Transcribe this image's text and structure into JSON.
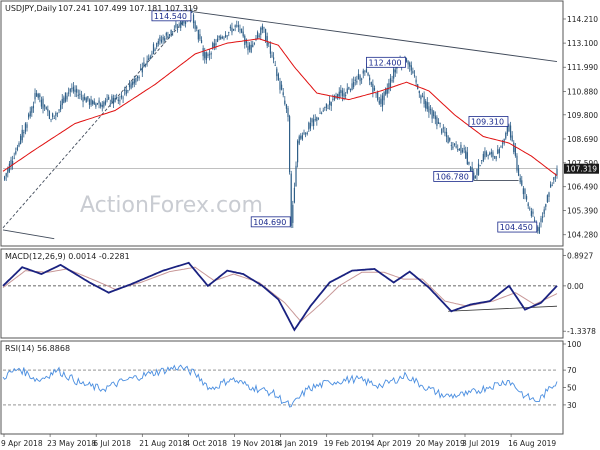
{
  "header": {
    "symbol": "USDJPY,Daily",
    "ohlc": "107.241 107.499 107.181 107.319"
  },
  "watermark": "ActionForex.com",
  "colors": {
    "candle": "#2f5f88",
    "ma": "#e01010",
    "trendline": "#404a5a",
    "macd": "#1a2280",
    "signal": "#c89898",
    "rsi": "#4a8ee0",
    "annotation_border": "#1a2a8c",
    "price_tag_bg": "#1a1a1a"
  },
  "chart_data": [
    {
      "type": "candlestick",
      "title": "USDJPY,Daily",
      "ylim": [
        103.9,
        114.9
      ],
      "y_ticks": [
        104.28,
        105.39,
        106.49,
        107.59,
        108.69,
        109.8,
        110.88,
        111.99,
        113.1,
        114.21
      ],
      "y_tick_labels": [
        "104.280",
        "105.390",
        "106.490",
        "107.590",
        "108.690",
        "109.800",
        "110.880",
        "111.990",
        "113.100",
        "114.210"
      ],
      "last_price": 107.319,
      "last_price_label": "107.319",
      "x_tick_labels": [
        "9 Apr 2018",
        "23 May 2018",
        "6 Jul 2018",
        "21 Aug 2018",
        "4 Oct 2018",
        "19 Nov 2018",
        "4 Jan 2019",
        "19 Feb 2019",
        "4 Apr 2019",
        "20 May 2019",
        "3 Jul 2019",
        "16 Aug 2019"
      ],
      "pivots": [
        {
          "x": 0,
          "y": 106.8
        },
        {
          "x": 10,
          "y": 108.5
        },
        {
          "x": 21,
          "y": 110.8
        },
        {
          "x": 30,
          "y": 109.6
        },
        {
          "x": 42,
          "y": 111.0
        },
        {
          "x": 56,
          "y": 110.3
        },
        {
          "x": 72,
          "y": 110.5
        },
        {
          "x": 84,
          "y": 111.6
        },
        {
          "x": 96,
          "y": 113.1
        },
        {
          "x": 110,
          "y": 113.9
        },
        {
          "x": 118,
          "y": 114.5
        },
        {
          "x": 126,
          "y": 112.4
        },
        {
          "x": 136,
          "y": 113.4
        },
        {
          "x": 146,
          "y": 113.9
        },
        {
          "x": 154,
          "y": 112.8
        },
        {
          "x": 162,
          "y": 113.9
        },
        {
          "x": 172,
          "y": 111.4
        },
        {
          "x": 178,
          "y": 109.7
        },
        {
          "x": 180,
          "y": 104.69
        },
        {
          "x": 184,
          "y": 108.6
        },
        {
          "x": 195,
          "y": 109.6
        },
        {
          "x": 206,
          "y": 110.5
        },
        {
          "x": 216,
          "y": 111.0
        },
        {
          "x": 226,
          "y": 111.8
        },
        {
          "x": 236,
          "y": 110.3
        },
        {
          "x": 246,
          "y": 112.1
        },
        {
          "x": 252,
          "y": 112.4
        },
        {
          "x": 260,
          "y": 110.8
        },
        {
          "x": 270,
          "y": 109.6
        },
        {
          "x": 280,
          "y": 108.4
        },
        {
          "x": 288,
          "y": 108.2
        },
        {
          "x": 294,
          "y": 106.78
        },
        {
          "x": 300,
          "y": 108.0
        },
        {
          "x": 308,
          "y": 107.9
        },
        {
          "x": 316,
          "y": 109.31
        },
        {
          "x": 322,
          "y": 107.0
        },
        {
          "x": 328,
          "y": 105.6
        },
        {
          "x": 334,
          "y": 104.45
        },
        {
          "x": 340,
          "y": 106.1
        },
        {
          "x": 346,
          "y": 107.319
        }
      ],
      "moving_average_pivots": [
        {
          "x": 0,
          "y": 107.2
        },
        {
          "x": 20,
          "y": 108.2
        },
        {
          "x": 45,
          "y": 109.4
        },
        {
          "x": 70,
          "y": 110.0
        },
        {
          "x": 95,
          "y": 111.2
        },
        {
          "x": 120,
          "y": 112.6
        },
        {
          "x": 140,
          "y": 113.1
        },
        {
          "x": 160,
          "y": 113.3
        },
        {
          "x": 172,
          "y": 113.0
        },
        {
          "x": 182,
          "y": 112.0
        },
        {
          "x": 196,
          "y": 110.8
        },
        {
          "x": 216,
          "y": 110.5
        },
        {
          "x": 236,
          "y": 110.9
        },
        {
          "x": 252,
          "y": 111.3
        },
        {
          "x": 266,
          "y": 110.9
        },
        {
          "x": 282,
          "y": 109.8
        },
        {
          "x": 300,
          "y": 108.8
        },
        {
          "x": 316,
          "y": 108.5
        },
        {
          "x": 330,
          "y": 107.9
        },
        {
          "x": 346,
          "y": 107.0
        }
      ],
      "trendlines": [
        {
          "from": {
            "x": 0,
            "y": 104.6
          },
          "to": {
            "x": 118,
            "y": 114.55
          }
        },
        {
          "from": {
            "x": 118,
            "y": 114.55
          },
          "to": {
            "x": 346,
            "y": 112.25
          }
        },
        {
          "from": {
            "x": 0,
            "y": 104.5
          },
          "to": {
            "x": 32,
            "y": 104.1
          }
        },
        {
          "from": {
            "x": 294,
            "y": 106.78
          },
          "to": {
            "x": 322,
            "y": 106.78
          }
        }
      ],
      "annotations": [
        {
          "label": "114.540",
          "x": 118,
          "y": 114.54,
          "side": "left"
        },
        {
          "label": "104.690",
          "x": 180,
          "y": 104.69,
          "side": "left"
        },
        {
          "label": "112.400",
          "x": 252,
          "y": 112.4,
          "side": "left"
        },
        {
          "label": "109.310",
          "x": 316,
          "y": 109.31,
          "side": "left"
        },
        {
          "label": "106.780",
          "x": 294,
          "y": 106.78,
          "side": "left"
        },
        {
          "label": "104.450",
          "x": 334,
          "y": 104.45,
          "side": "left"
        }
      ]
    },
    {
      "type": "line",
      "title": "MACD(12,26,9) 0.0014 -0.2281",
      "ylim": [
        -1.45,
        1.0
      ],
      "y_ticks": [
        0.8927,
        0.0,
        -1.3378
      ],
      "y_tick_labels": [
        "0.8927",
        "0.00",
        "-1.3378"
      ],
      "zero_line": 0.0,
      "macd_pivots": [
        {
          "x": 0,
          "y": 0.0
        },
        {
          "x": 12,
          "y": 0.55
        },
        {
          "x": 24,
          "y": 0.35
        },
        {
          "x": 36,
          "y": 0.62
        },
        {
          "x": 54,
          "y": 0.1
        },
        {
          "x": 66,
          "y": -0.2
        },
        {
          "x": 80,
          "y": 0.05
        },
        {
          "x": 100,
          "y": 0.45
        },
        {
          "x": 116,
          "y": 0.68
        },
        {
          "x": 128,
          "y": 0.0
        },
        {
          "x": 140,
          "y": 0.45
        },
        {
          "x": 150,
          "y": 0.35
        },
        {
          "x": 162,
          "y": 0.0
        },
        {
          "x": 172,
          "y": -0.4
        },
        {
          "x": 182,
          "y": -1.3
        },
        {
          "x": 192,
          "y": -0.6
        },
        {
          "x": 204,
          "y": 0.1
        },
        {
          "x": 218,
          "y": 0.45
        },
        {
          "x": 232,
          "y": 0.5
        },
        {
          "x": 244,
          "y": 0.1
        },
        {
          "x": 254,
          "y": 0.42
        },
        {
          "x": 266,
          "y": -0.05
        },
        {
          "x": 280,
          "y": -0.75
        },
        {
          "x": 292,
          "y": -0.55
        },
        {
          "x": 304,
          "y": -0.45
        },
        {
          "x": 316,
          "y": 0.0
        },
        {
          "x": 326,
          "y": -0.7
        },
        {
          "x": 336,
          "y": -0.5
        },
        {
          "x": 346,
          "y": 0.0014
        }
      ],
      "signal_pivots": [
        {
          "x": 0,
          "y": -0.05
        },
        {
          "x": 14,
          "y": 0.45
        },
        {
          "x": 28,
          "y": 0.4
        },
        {
          "x": 40,
          "y": 0.5
        },
        {
          "x": 58,
          "y": 0.15
        },
        {
          "x": 70,
          "y": -0.1
        },
        {
          "x": 86,
          "y": 0.1
        },
        {
          "x": 104,
          "y": 0.42
        },
        {
          "x": 120,
          "y": 0.55
        },
        {
          "x": 132,
          "y": 0.15
        },
        {
          "x": 144,
          "y": 0.35
        },
        {
          "x": 160,
          "y": 0.1
        },
        {
          "x": 176,
          "y": -0.5
        },
        {
          "x": 186,
          "y": -1.05
        },
        {
          "x": 198,
          "y": -0.55
        },
        {
          "x": 210,
          "y": 0.0
        },
        {
          "x": 224,
          "y": 0.4
        },
        {
          "x": 238,
          "y": 0.4
        },
        {
          "x": 250,
          "y": 0.2
        },
        {
          "x": 262,
          "y": 0.2
        },
        {
          "x": 276,
          "y": -0.45
        },
        {
          "x": 290,
          "y": -0.6
        },
        {
          "x": 306,
          "y": -0.45
        },
        {
          "x": 320,
          "y": -0.2
        },
        {
          "x": 332,
          "y": -0.55
        },
        {
          "x": 346,
          "y": -0.2281
        }
      ],
      "support_line": {
        "from": {
          "x": 278,
          "y": -0.75
        },
        "to": {
          "x": 346,
          "y": -0.6
        }
      }
    },
    {
      "type": "line",
      "title": "RSI(14) 56.8868",
      "ylim": [
        0,
        100
      ],
      "y_ticks": [
        100,
        70,
        50,
        30
      ],
      "y_tick_labels": [
        "100",
        "70",
        "50",
        "30"
      ],
      "dashed_levels": [
        70,
        30
      ],
      "rsi_pivots": [
        {
          "x": 0,
          "y": 62
        },
        {
          "x": 10,
          "y": 72
        },
        {
          "x": 22,
          "y": 58
        },
        {
          "x": 34,
          "y": 70
        },
        {
          "x": 48,
          "y": 55
        },
        {
          "x": 62,
          "y": 48
        },
        {
          "x": 76,
          "y": 58
        },
        {
          "x": 92,
          "y": 66
        },
        {
          "x": 110,
          "y": 74
        },
        {
          "x": 120,
          "y": 66
        },
        {
          "x": 130,
          "y": 48
        },
        {
          "x": 142,
          "y": 60
        },
        {
          "x": 156,
          "y": 50
        },
        {
          "x": 168,
          "y": 44
        },
        {
          "x": 180,
          "y": 28
        },
        {
          "x": 190,
          "y": 48
        },
        {
          "x": 204,
          "y": 56
        },
        {
          "x": 220,
          "y": 60
        },
        {
          "x": 236,
          "y": 52
        },
        {
          "x": 252,
          "y": 64
        },
        {
          "x": 262,
          "y": 52
        },
        {
          "x": 276,
          "y": 40
        },
        {
          "x": 290,
          "y": 42
        },
        {
          "x": 302,
          "y": 50
        },
        {
          "x": 316,
          "y": 58
        },
        {
          "x": 326,
          "y": 40
        },
        {
          "x": 334,
          "y": 34
        },
        {
          "x": 340,
          "y": 46
        },
        {
          "x": 346,
          "y": 56.8868
        }
      ]
    }
  ]
}
